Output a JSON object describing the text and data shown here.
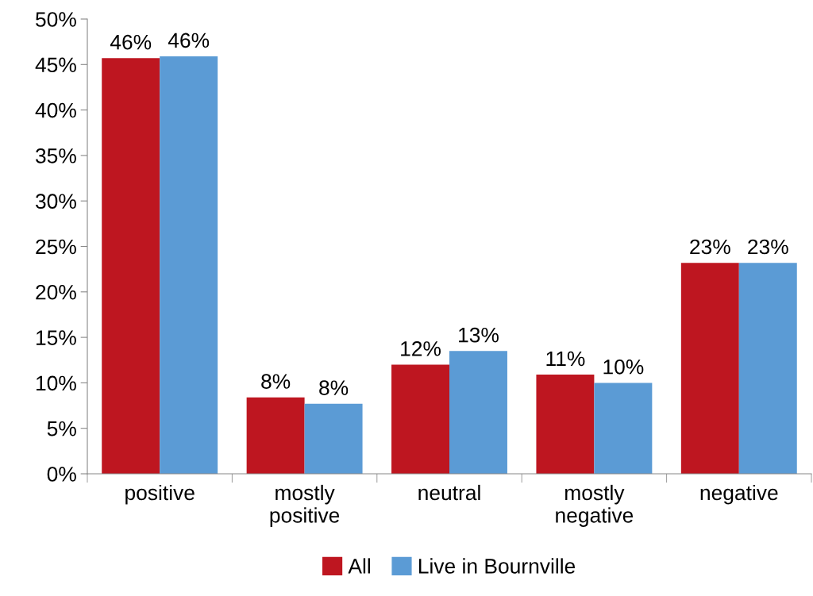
{
  "chart_data": {
    "type": "bar",
    "categories": [
      "positive",
      "mostly\npositive",
      "neutral",
      "mostly\nnegative",
      "negative"
    ],
    "series": [
      {
        "name": "All",
        "color": "#be1620",
        "values": [
          45.7,
          8.4,
          12.0,
          10.9,
          23.2
        ],
        "value_labels": [
          "46%",
          "8%",
          "12%",
          "11%",
          "23%"
        ]
      },
      {
        "name": "Live in Bournville",
        "color": "#5b9bd5",
        "values": [
          45.9,
          7.7,
          13.5,
          10.0,
          23.2
        ],
        "value_labels": [
          "46%",
          "8%",
          "13%",
          "10%",
          "23%"
        ]
      }
    ],
    "ylim": [
      0,
      50
    ],
    "yticks": [
      {
        "value": 0,
        "label": "0%"
      },
      {
        "value": 5,
        "label": "5%"
      },
      {
        "value": 10,
        "label": "10%"
      },
      {
        "value": 15,
        "label": "15%"
      },
      {
        "value": 20,
        "label": "20%"
      },
      {
        "value": 25,
        "label": "25%"
      },
      {
        "value": 30,
        "label": "30%"
      },
      {
        "value": 35,
        "label": "35%"
      },
      {
        "value": 40,
        "label": "40%"
      },
      {
        "value": 45,
        "label": "45%"
      },
      {
        "value": 50,
        "label": "50%"
      }
    ],
    "grid": false,
    "legend": "bottom"
  }
}
